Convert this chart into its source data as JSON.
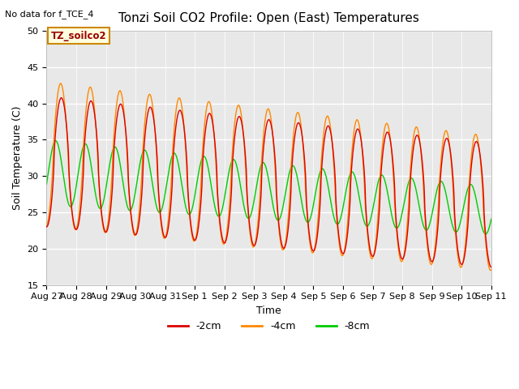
{
  "title": "Tonzi Soil CO2 Profile: Open (East) Temperatures",
  "top_left_note": "No data for f_TCE_4",
  "box_label": "TZ_soilco2",
  "xlabel": "Time",
  "ylabel": "Soil Temperature (C)",
  "ylim": [
    15,
    50
  ],
  "yticks": [
    15,
    20,
    25,
    30,
    35,
    40,
    45,
    50
  ],
  "bg_color": "#e8e8e8",
  "xtick_labels": [
    "Aug 27",
    "Aug 28",
    "Aug 29",
    "Aug 30",
    "Aug 31",
    "Sep 1",
    "Sep 2",
    "Sep 3",
    "Sep 4",
    "Sep 5",
    "Sep 6",
    "Sep 7",
    "Sep 8",
    "Sep 9",
    "Sep 10",
    "Sep 11"
  ],
  "legend_colors": [
    "#dd0000",
    "#ff8800",
    "#00cc00"
  ],
  "legend_labels": [
    "-2cm",
    "-4cm",
    "-8cm"
  ]
}
